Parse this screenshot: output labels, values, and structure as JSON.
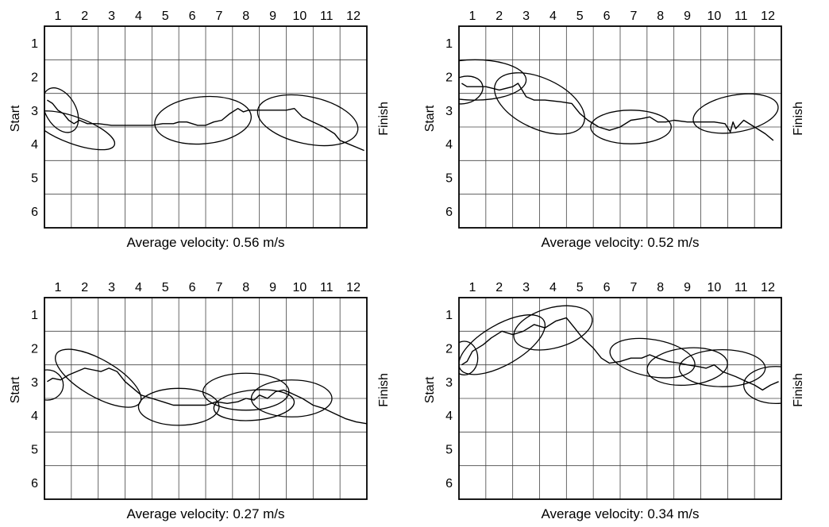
{
  "column_numbers": [
    "1",
    "2",
    "3",
    "4",
    "5",
    "6",
    "7",
    "8",
    "9",
    "10",
    "11",
    "12"
  ],
  "row_numbers": [
    "1",
    "2",
    "3",
    "4",
    "5",
    "6"
  ],
  "start_label": "Start",
  "finish_label": "Finish",
  "panels": [
    {
      "caption": "Average velocity: 0.56 m/s",
      "trajectory": [
        [
          0.1,
          2.7
        ],
        [
          0.3,
          2.8
        ],
        [
          0.5,
          3.0
        ],
        [
          0.7,
          3.1
        ],
        [
          0.9,
          3.3
        ],
        [
          1.1,
          3.4
        ],
        [
          1.3,
          3.3
        ],
        [
          1.6,
          3.4
        ],
        [
          2.0,
          3.4
        ],
        [
          2.5,
          3.45
        ],
        [
          3,
          3.45
        ],
        [
          3.5,
          3.45
        ],
        [
          4,
          3.45
        ],
        [
          4.4,
          3.4
        ],
        [
          4.8,
          3.4
        ],
        [
          5.0,
          3.35
        ],
        [
          5.3,
          3.35
        ],
        [
          5.5,
          3.4
        ],
        [
          5.7,
          3.45
        ],
        [
          6.0,
          3.45
        ],
        [
          6.3,
          3.35
        ],
        [
          6.6,
          3.3
        ],
        [
          6.9,
          3.1
        ],
        [
          7.2,
          2.95
        ],
        [
          7.4,
          3.05
        ],
        [
          7.6,
          3.0
        ],
        [
          8.0,
          3.0
        ],
        [
          8.5,
          3.0
        ],
        [
          9.0,
          3.0
        ],
        [
          9.3,
          2.95
        ],
        [
          9.6,
          3.2
        ],
        [
          10.0,
          3.35
        ],
        [
          10.4,
          3.5
        ],
        [
          10.8,
          3.7
        ],
        [
          11.0,
          3.9
        ],
        [
          11.3,
          4.0
        ],
        [
          11.6,
          4.1
        ],
        [
          11.9,
          4.2
        ]
      ],
      "ellipses": [
        {
          "cx": 0.6,
          "cy": 3.0,
          "rx": 0.9,
          "ry": 0.45,
          "rot": 60
        },
        {
          "cx": 1.1,
          "cy": 3.6,
          "rx": 1.6,
          "ry": 0.4,
          "rot": 20
        },
        {
          "cx": 5.9,
          "cy": 3.3,
          "rx": 1.8,
          "ry": 0.7,
          "rot": -5
        },
        {
          "cx": 9.8,
          "cy": 3.3,
          "rx": 1.9,
          "ry": 0.7,
          "rot": 12
        }
      ]
    },
    {
      "caption": "Average velocity: 0.52 m/s",
      "trajectory": [
        [
          0.1,
          2.2
        ],
        [
          0.3,
          2.3
        ],
        [
          0.5,
          2.3
        ],
        [
          1.0,
          2.3
        ],
        [
          1.5,
          2.4
        ],
        [
          2.0,
          2.3
        ],
        [
          2.2,
          2.2
        ],
        [
          2.5,
          2.6
        ],
        [
          2.8,
          2.7
        ],
        [
          3.2,
          2.7
        ],
        [
          3.8,
          2.75
        ],
        [
          4.2,
          2.8
        ],
        [
          4.5,
          3.1
        ],
        [
          4.8,
          3.3
        ],
        [
          5.2,
          3.5
        ],
        [
          5.6,
          3.6
        ],
        [
          6.0,
          3.5
        ],
        [
          6.4,
          3.3
        ],
        [
          6.8,
          3.25
        ],
        [
          7.1,
          3.2
        ],
        [
          7.4,
          3.35
        ],
        [
          7.7,
          3.35
        ],
        [
          8.0,
          3.3
        ],
        [
          8.5,
          3.35
        ],
        [
          9.0,
          3.35
        ],
        [
          9.5,
          3.35
        ],
        [
          9.9,
          3.4
        ],
        [
          10.1,
          3.65
        ],
        [
          10.2,
          3.35
        ],
        [
          10.3,
          3.55
        ],
        [
          10.6,
          3.3
        ],
        [
          11.0,
          3.5
        ],
        [
          11.4,
          3.7
        ],
        [
          11.7,
          3.9
        ]
      ],
      "ellipses": [
        {
          "cx": 0.6,
          "cy": 2.1,
          "rx": 1.9,
          "ry": 0.6,
          "rot": 0
        },
        {
          "cx": 0.2,
          "cy": 2.4,
          "rx": 0.7,
          "ry": 0.4,
          "rot": -15
        },
        {
          "cx": 3.0,
          "cy": 2.8,
          "rx": 1.8,
          "ry": 0.75,
          "rot": 25
        },
        {
          "cx": 6.4,
          "cy": 3.5,
          "rx": 1.5,
          "ry": 0.5,
          "rot": 0
        },
        {
          "cx": 10.3,
          "cy": 3.1,
          "rx": 1.6,
          "ry": 0.55,
          "rot": -10
        }
      ]
    },
    {
      "caption": "Average velocity: 0.27 m/s",
      "trajectory": [
        [
          0.1,
          3.0
        ],
        [
          0.3,
          2.9
        ],
        [
          0.6,
          2.95
        ],
        [
          0.9,
          2.8
        ],
        [
          1.2,
          2.7
        ],
        [
          1.5,
          2.6
        ],
        [
          1.8,
          2.65
        ],
        [
          2.1,
          2.7
        ],
        [
          2.4,
          2.6
        ],
        [
          2.7,
          2.7
        ],
        [
          3.0,
          3.0
        ],
        [
          3.3,
          3.2
        ],
        [
          3.6,
          3.4
        ],
        [
          4.0,
          3.5
        ],
        [
          4.4,
          3.6
        ],
        [
          4.8,
          3.7
        ],
        [
          5.2,
          3.7
        ],
        [
          5.6,
          3.7
        ],
        [
          6.0,
          3.7
        ],
        [
          6.4,
          3.6
        ],
        [
          6.8,
          3.65
        ],
        [
          7.2,
          3.6
        ],
        [
          7.5,
          3.5
        ],
        [
          7.8,
          3.55
        ],
        [
          8.0,
          3.4
        ],
        [
          8.3,
          3.5
        ],
        [
          8.6,
          3.3
        ],
        [
          8.9,
          3.25
        ],
        [
          9.2,
          3.35
        ],
        [
          9.6,
          3.5
        ],
        [
          10.0,
          3.7
        ],
        [
          10.4,
          3.8
        ],
        [
          10.8,
          3.95
        ],
        [
          11.2,
          4.1
        ],
        [
          11.6,
          4.2
        ],
        [
          12.0,
          4.25
        ]
      ],
      "ellipses": [
        {
          "cx": 0.1,
          "cy": 3.1,
          "rx": 0.6,
          "ry": 0.45,
          "rot": 0
        },
        {
          "cx": 2.0,
          "cy": 2.9,
          "rx": 1.8,
          "ry": 0.55,
          "rot": 30
        },
        {
          "cx": 5.0,
          "cy": 3.75,
          "rx": 1.5,
          "ry": 0.55,
          "rot": 0
        },
        {
          "cx": 7.5,
          "cy": 3.3,
          "rx": 1.6,
          "ry": 0.55,
          "rot": 0
        },
        {
          "cx": 7.8,
          "cy": 3.7,
          "rx": 1.5,
          "ry": 0.45,
          "rot": -5
        },
        {
          "cx": 9.2,
          "cy": 3.5,
          "rx": 1.5,
          "ry": 0.55,
          "rot": 0
        }
      ]
    },
    {
      "caption": "Average velocity: 0.34 m/s",
      "trajectory": [
        [
          0.1,
          2.5
        ],
        [
          0.3,
          2.4
        ],
        [
          0.5,
          2.1
        ],
        [
          0.9,
          1.9
        ],
        [
          1.2,
          1.7
        ],
        [
          1.6,
          1.5
        ],
        [
          2.0,
          1.6
        ],
        [
          2.4,
          1.5
        ],
        [
          2.8,
          1.3
        ],
        [
          3.2,
          1.4
        ],
        [
          3.6,
          1.2
        ],
        [
          4.0,
          1.1
        ],
        [
          4.3,
          1.4
        ],
        [
          4.6,
          1.7
        ],
        [
          5.0,
          2.0
        ],
        [
          5.3,
          2.3
        ],
        [
          5.6,
          2.45
        ],
        [
          6.0,
          2.4
        ],
        [
          6.4,
          2.3
        ],
        [
          6.8,
          2.3
        ],
        [
          7.1,
          2.2
        ],
        [
          7.4,
          2.3
        ],
        [
          7.8,
          2.4
        ],
        [
          8.2,
          2.45
        ],
        [
          8.5,
          2.5
        ],
        [
          8.9,
          2.55
        ],
        [
          9.2,
          2.6
        ],
        [
          9.5,
          2.5
        ],
        [
          9.8,
          2.7
        ],
        [
          10.3,
          2.85
        ],
        [
          10.7,
          3.0
        ],
        [
          11.0,
          3.1
        ],
        [
          11.3,
          3.25
        ],
        [
          11.6,
          3.1
        ],
        [
          11.9,
          3.0
        ]
      ],
      "ellipses": [
        {
          "cx": 0.2,
          "cy": 2.3,
          "rx": 0.5,
          "ry": 0.5,
          "rot": 0
        },
        {
          "cx": 1.6,
          "cy": 1.9,
          "rx": 1.8,
          "ry": 0.6,
          "rot": -30
        },
        {
          "cx": 3.5,
          "cy": 1.4,
          "rx": 1.5,
          "ry": 0.6,
          "rot": -15
        },
        {
          "cx": 7.2,
          "cy": 2.3,
          "rx": 1.6,
          "ry": 0.55,
          "rot": 10
        },
        {
          "cx": 8.5,
          "cy": 2.55,
          "rx": 1.5,
          "ry": 0.55,
          "rot": -5
        },
        {
          "cx": 9.8,
          "cy": 2.6,
          "rx": 1.6,
          "ry": 0.55,
          "rot": 0
        },
        {
          "cx": 11.8,
          "cy": 3.1,
          "rx": 1.2,
          "ry": 0.55,
          "rot": 0
        }
      ]
    }
  ]
}
